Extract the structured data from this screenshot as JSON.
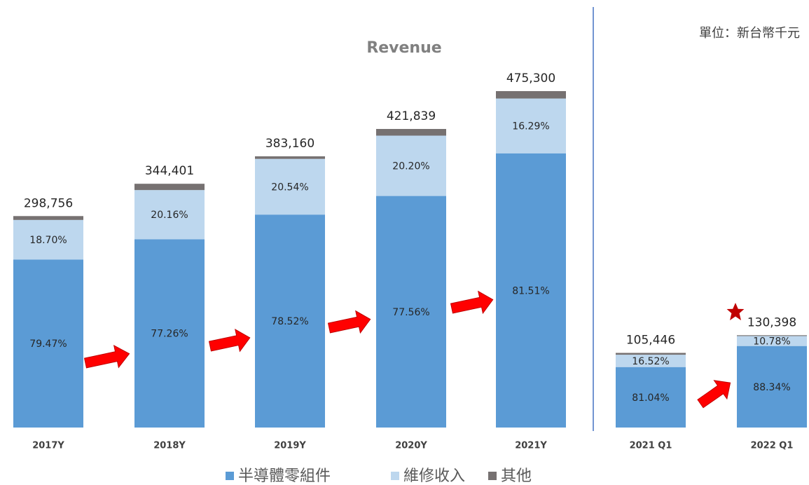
{
  "chart_data": {
    "type": "bar",
    "title": "Revenue",
    "note": "單位：新台幣千元",
    "categories": [
      "2017Y",
      "2018Y",
      "2019Y",
      "2020Y",
      "2021Y",
      "2021 Q1",
      "2022 Q1"
    ],
    "totals": [
      298756,
      344401,
      383160,
      421839,
      475300,
      105446,
      130398
    ],
    "total_labels": [
      "298,756",
      "344,401",
      "383,160",
      "421,839",
      "475,300",
      "105,446",
      "130,398"
    ],
    "series": [
      {
        "name": "半導體零組件",
        "color": "#5b9bd5",
        "values": [
          79.47,
          77.26,
          78.52,
          77.56,
          81.51,
          81.04,
          88.34
        ],
        "value_labels": [
          "79.47%",
          "77.26%",
          "78.52%",
          "77.56%",
          "81.51%",
          "81.04%",
          "88.34%"
        ]
      },
      {
        "name": "維修收入",
        "color": "#bdd7ee",
        "values": [
          18.7,
          20.16,
          20.54,
          20.2,
          16.29,
          16.52,
          10.78
        ],
        "value_labels": [
          "18.70%",
          "20.16%",
          "20.54%",
          "20.20%",
          "16.29%",
          "16.52%",
          "10.78%"
        ]
      },
      {
        "name": "其他",
        "color": "#767171",
        "values": [
          1.83,
          2.58,
          0.94,
          2.24,
          2.2,
          2.44,
          0.88
        ]
      }
    ]
  }
}
